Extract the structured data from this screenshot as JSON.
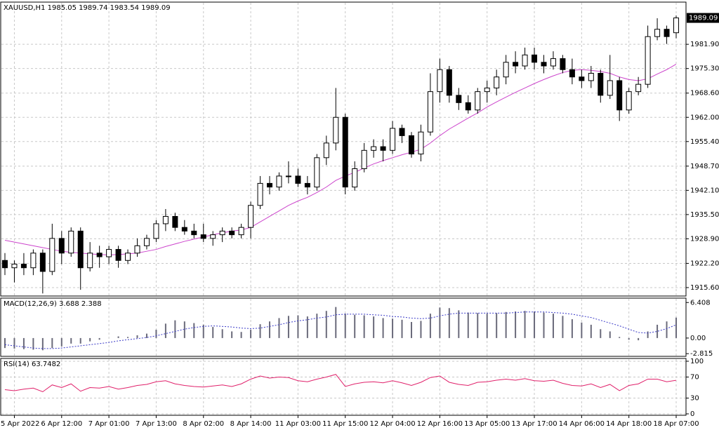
{
  "chart_data": [
    {
      "type": "candlestick",
      "title": "XAUUSD,H1  1985.05 1989.74 1983.54 1989.09",
      "grid": true,
      "categories": [
        null,
        "5 Apr 2022",
        null,
        null,
        null,
        null,
        "6 Apr 12:00",
        null,
        null,
        null,
        null,
        "7 Apr 01:00",
        null,
        null,
        null,
        null,
        "7 Apr 13:00",
        null,
        null,
        null,
        null,
        "8 Apr 02:00",
        null,
        null,
        null,
        null,
        "8 Apr 14:00",
        null,
        null,
        null,
        null,
        "11 Apr 03:00",
        null,
        null,
        null,
        null,
        "11 Apr 15:00",
        null,
        null,
        null,
        null,
        "12 Apr 04:00",
        null,
        null,
        null,
        null,
        "12 Apr 16:00",
        null,
        null,
        null,
        null,
        "13 Apr 05:00",
        null,
        null,
        null,
        null,
        "13 Apr 17:00",
        null,
        null,
        null,
        null,
        "14 Apr 06:00",
        null,
        null,
        null,
        null,
        "14 Apr 18:00",
        null,
        null,
        null,
        null,
        "18 Apr 07:00"
      ],
      "open": [
        1923,
        1921,
        1922,
        1921,
        1925,
        1920,
        1929,
        1925,
        1931,
        1921,
        1925,
        1924,
        1926,
        1923,
        1925,
        1927,
        1929,
        1933,
        1935,
        1932,
        1931,
        1930,
        1929,
        1930,
        1931,
        1930,
        1932,
        1938,
        1944,
        1943,
        1946,
        1946,
        1944,
        1943,
        1951,
        1955,
        1962,
        1943,
        1948,
        1953,
        1954,
        1953,
        1959,
        1957,
        1952,
        1958,
        1969,
        1975,
        1968,
        1966,
        1964,
        1969,
        1970,
        1973,
        1977,
        1976,
        1979,
        1977,
        1976,
        1978,
        1975,
        1973,
        1972,
        1974,
        1968,
        1972,
        1964,
        1969,
        1971,
        1984,
        1986,
        1985.05
      ],
      "high": [
        1925,
        1923,
        1925,
        1926,
        1926,
        1933,
        1931,
        1932,
        1932,
        1928,
        1927,
        1927,
        1927,
        1926,
        1929,
        1930,
        1934,
        1937,
        1936,
        1934,
        1933,
        1933,
        1931,
        1932,
        1932,
        1933,
        1939,
        1946,
        1946,
        1947,
        1950,
        1948,
        1946,
        1952,
        1957,
        1970,
        1963,
        1950,
        1955,
        1956,
        1956,
        1961,
        1960,
        1958,
        1960,
        1974,
        1978,
        1976,
        1970,
        1968,
        1970,
        1972,
        1975,
        1979,
        1980,
        1981,
        1981,
        1979,
        1980,
        1979,
        1978,
        1975,
        1976,
        1975,
        1979,
        1973,
        1970,
        1973,
        1987,
        1989,
        1987,
        1989.74
      ],
      "low": [
        1919,
        1917,
        1919,
        1919,
        1914,
        1919,
        1922,
        1924,
        1915,
        1920,
        1921,
        1922,
        1921,
        1922,
        1924,
        1926,
        1928,
        1931,
        1931,
        1930,
        1929,
        1928,
        1927,
        1928,
        1929,
        1929,
        1929,
        1937,
        1941,
        1942,
        1944,
        1943,
        1941,
        1942,
        1949,
        1953,
        1941,
        1942,
        1947,
        1951,
        1950,
        1952,
        1955,
        1951,
        1950,
        1957,
        1966,
        1966,
        1964,
        1963,
        1963,
        1966,
        1968,
        1971,
        1974,
        1975,
        1975,
        1974,
        1975,
        1974,
        1971,
        1970,
        1970,
        1966,
        1967,
        1961,
        1963,
        1968,
        1970,
        1983,
        1982,
        1983.54
      ],
      "close": [
        1921,
        1922,
        1921,
        1925,
        1920,
        1929,
        1925,
        1931,
        1921,
        1925,
        1924,
        1926,
        1923,
        1925,
        1927,
        1929,
        1933,
        1935,
        1932,
        1931,
        1930,
        1929,
        1930,
        1931,
        1930,
        1932,
        1938,
        1944,
        1943,
        1946,
        1946,
        1944,
        1943,
        1951,
        1955,
        1962,
        1943,
        1948,
        1953,
        1954,
        1953,
        1959,
        1957,
        1952,
        1958,
        1969,
        1975,
        1968,
        1966,
        1964,
        1969,
        1970,
        1973,
        1977,
        1976,
        1979,
        1977,
        1976,
        1978,
        1975,
        1973,
        1972,
        1974,
        1968,
        1972,
        1964,
        1969,
        1971,
        1984,
        1986,
        1984,
        1989.09
      ],
      "ma": {
        "color": "#cc44cc",
        "values": [
          1928.5,
          1928,
          1927.5,
          1927,
          1926.5,
          1926,
          1925.5,
          1925.2,
          1925,
          1924.8,
          1924.6,
          1924.5,
          1924.6,
          1924.8,
          1925,
          1925.5,
          1926,
          1926.8,
          1927.5,
          1928.2,
          1928.8,
          1929.4,
          1930,
          1930.5,
          1931,
          1931.3,
          1932,
          1933.5,
          1935,
          1936.5,
          1938,
          1939.2,
          1940.2,
          1941.5,
          1943,
          1944.8,
          1946,
          1947,
          1948.2,
          1949.3,
          1950.2,
          1951,
          1951.8,
          1952.5,
          1953.3,
          1955,
          1957,
          1958.8,
          1960.3,
          1961.8,
          1963.2,
          1964.8,
          1966.2,
          1967.5,
          1968.8,
          1970,
          1971.2,
          1972.3,
          1973.3,
          1974.2,
          1974.8,
          1975,
          1974.8,
          1974.5,
          1974,
          1973,
          1972.3,
          1972,
          1972.5,
          1973.8,
          1975,
          1976.5
        ]
      },
      "ylim": [
        1913.3,
        1993.4
      ],
      "yticks": [
        {
          "value": 1915.6,
          "label": "1915.60"
        },
        {
          "value": 1922.2,
          "label": "1922.20"
        },
        {
          "value": 1928.9,
          "label": "1928.90"
        },
        {
          "value": 1935.5,
          "label": "1935.50"
        },
        {
          "value": 1942.1,
          "label": "1942.10"
        },
        {
          "value": 1948.7,
          "label": "1948.70"
        },
        {
          "value": 1955.4,
          "label": "1955.40"
        },
        {
          "value": 1962,
          "label": "1962.00"
        },
        {
          "value": 1968.6,
          "label": "1968.60"
        },
        {
          "value": 1975.3,
          "label": "1975.30"
        },
        {
          "value": 1981.9,
          "label": "1981.90"
        }
      ]
    },
    {
      "type": "macd",
      "title": "MACD(12,26,9) 3.688 2.388",
      "histogram": {
        "color": "#6a6a7a",
        "values": [
          -1.8,
          -1.9,
          -2,
          -2.1,
          -2.2,
          -1.8,
          -1.5,
          -1,
          -1,
          -0.6,
          -0.3,
          0,
          0.3,
          0.2,
          0.5,
          0.8,
          1.5,
          2.6,
          3.2,
          3,
          2.7,
          2.4,
          2,
          1.6,
          1.2,
          1.1,
          1.5,
          2.5,
          3,
          3.6,
          4,
          4.1,
          3.9,
          4.4,
          4.9,
          5.6,
          4.4,
          4.2,
          4.1,
          3.9,
          3.6,
          3.5,
          3.3,
          2.9,
          3.1,
          4.4,
          5.5,
          5.4,
          5,
          4.6,
          4.5,
          4.4,
          4.5,
          4.7,
          4.8,
          4.9,
          4.8,
          4.6,
          4.4,
          4,
          3.4,
          2.8,
          2.4,
          1.6,
          1.2,
          0.2,
          -0.3,
          -0.4,
          1.2,
          2.4,
          3,
          3.688
        ]
      },
      "signal": {
        "color": "#3a3ac8",
        "values": [
          -1.2,
          -1.4,
          -1.6,
          -1.8,
          -1.9,
          -1.9,
          -1.8,
          -1.6,
          -1.4,
          -1.2,
          -1,
          -0.8,
          -0.5,
          -0.3,
          -0.1,
          0.1,
          0.4,
          0.8,
          1.2,
          1.6,
          1.9,
          2.1,
          2.2,
          2.1,
          2,
          1.8,
          1.7,
          1.8,
          2.1,
          2.4,
          2.8,
          3.1,
          3.3,
          3.6,
          3.8,
          4.2,
          4.3,
          4.3,
          4.3,
          4.2,
          4.1,
          3.9,
          3.8,
          3.6,
          3.5,
          3.6,
          4,
          4.3,
          4.5,
          4.5,
          4.5,
          4.5,
          4.5,
          4.5,
          4.6,
          4.7,
          4.7,
          4.7,
          4.6,
          4.5,
          4.3,
          4,
          3.7,
          3.2,
          2.7,
          2.2,
          1.6,
          1,
          0.9,
          1.2,
          1.7,
          2.388
        ]
      },
      "ylim": [
        -3.3,
        7.2
      ],
      "yticks": [
        6.408,
        {
          "value": 0,
          "label": "0.00"
        },
        -2.815
      ]
    },
    {
      "type": "rsi",
      "title": "RSI(14) 63.7482",
      "color": "#e0206a",
      "values": [
        46,
        44,
        47,
        49,
        42,
        55,
        50,
        57,
        43,
        50,
        49,
        52,
        47,
        50,
        54,
        56,
        61,
        63,
        57,
        54,
        52,
        51,
        53,
        55,
        52,
        57,
        66,
        72,
        68,
        70,
        69,
        63,
        61,
        66,
        70,
        75,
        52,
        57,
        60,
        61,
        59,
        63,
        59,
        54,
        60,
        69,
        72,
        60,
        56,
        54,
        60,
        61,
        64,
        66,
        64,
        67,
        63,
        62,
        64,
        58,
        54,
        53,
        57,
        50,
        56,
        44,
        54,
        57,
        66,
        66,
        61,
        63.7482
      ],
      "ylim": [
        -2.7,
        105.3
      ],
      "yticks": [
        100,
        70,
        30,
        0
      ]
    }
  ]
}
